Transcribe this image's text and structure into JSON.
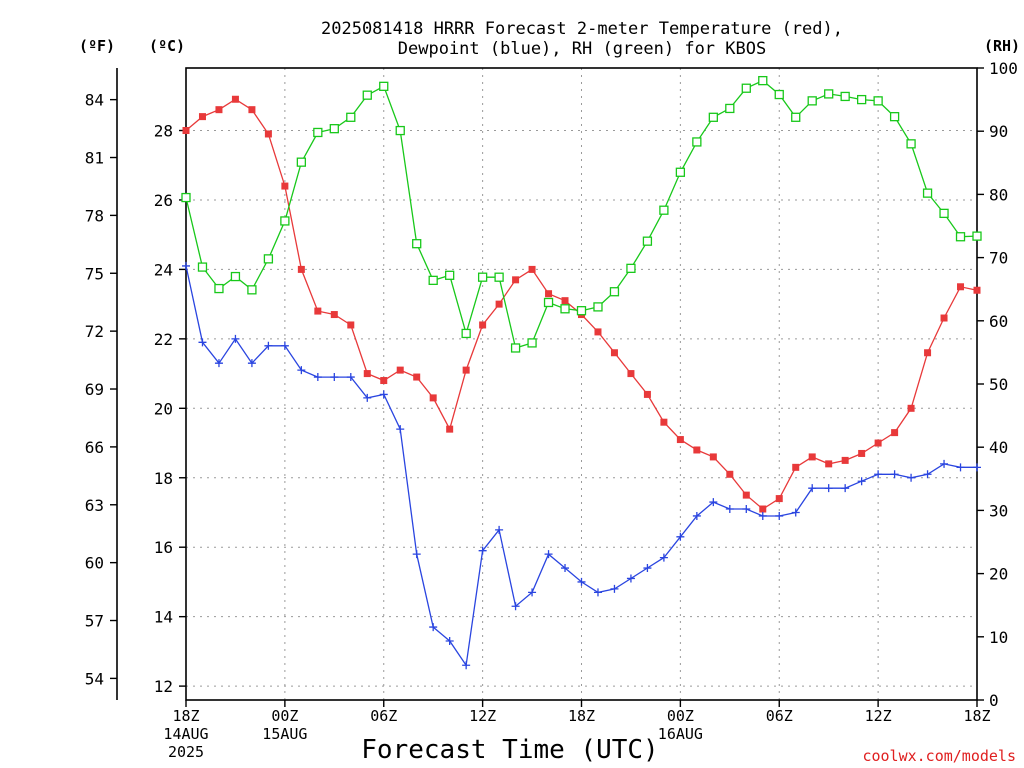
{
  "title_line1": "2025081418 HRRR Forecast 2-meter Temperature (red),",
  "title_line2": "Dewpoint (blue), RH (green) for KBOS",
  "unit_f": "(ºF)",
  "unit_c": "(ºC)",
  "unit_rh": "(RH)",
  "credit": "coolwx.com/models",
  "chart_data": {
    "type": "line",
    "xlabel": "Forecast Time (UTC)",
    "x_hours": [
      0,
      1,
      2,
      3,
      4,
      5,
      6,
      7,
      8,
      9,
      10,
      11,
      12,
      13,
      14,
      15,
      16,
      17,
      18,
      19,
      20,
      21,
      22,
      23,
      24,
      25,
      26,
      27,
      28,
      29,
      30,
      31,
      32,
      33,
      34,
      35,
      36,
      37,
      38,
      39,
      40,
      41,
      42,
      43,
      44,
      45,
      46,
      47,
      48
    ],
    "x_ticks": [
      {
        "h": 0,
        "lines": [
          "18Z",
          "14AUG",
          "2025"
        ]
      },
      {
        "h": 6,
        "lines": [
          "00Z",
          "15AUG"
        ]
      },
      {
        "h": 12,
        "lines": [
          "06Z"
        ]
      },
      {
        "h": 18,
        "lines": [
          "12Z"
        ]
      },
      {
        "h": 24,
        "lines": [
          "18Z"
        ]
      },
      {
        "h": 30,
        "lines": [
          "00Z",
          "16AUG"
        ]
      },
      {
        "h": 36,
        "lines": [
          "06Z"
        ]
      },
      {
        "h": 42,
        "lines": [
          "12Z"
        ]
      },
      {
        "h": 48,
        "lines": [
          "18Z"
        ]
      }
    ],
    "xlim": [
      0,
      48
    ],
    "ylim_c": [
      11.6,
      29.8
    ],
    "ylim_rh": [
      0,
      100
    ],
    "yticks_c": [
      "12",
      "14",
      "16",
      "18",
      "20",
      "22",
      "24",
      "26",
      "28"
    ],
    "yticks_f": [
      "54",
      "57",
      "60",
      "63",
      "66",
      "69",
      "72",
      "75",
      "78",
      "81",
      "84"
    ],
    "yticks_rh": [
      "0",
      "10",
      "20",
      "30",
      "40",
      "50",
      "60",
      "70",
      "80",
      "90",
      "100"
    ],
    "grid": true,
    "series": [
      {
        "name": "Temperature",
        "unit": "°C",
        "color": "#e8393a",
        "marker": "square-filled",
        "axis": "c",
        "values": [
          28.0,
          28.4,
          28.6,
          28.9,
          28.6,
          27.9,
          26.4,
          24.0,
          22.8,
          22.7,
          22.4,
          21.0,
          20.8,
          21.1,
          20.9,
          20.3,
          19.4,
          21.1,
          22.4,
          23.0,
          23.7,
          24.0,
          23.3,
          23.1,
          22.7,
          22.2,
          21.6,
          21.0,
          20.4,
          19.6,
          19.1,
          18.8,
          18.6,
          18.1,
          17.5,
          17.1,
          17.4,
          18.3,
          18.6,
          18.4,
          18.5,
          18.7,
          19.0,
          19.3,
          20.0,
          21.6,
          22.6,
          23.5,
          23.4
        ]
      },
      {
        "name": "Dewpoint",
        "unit": "°C",
        "color": "#2a45e0",
        "marker": "plus",
        "axis": "c",
        "values": [
          24.1,
          21.9,
          21.3,
          22.0,
          21.3,
          21.8,
          21.8,
          21.1,
          20.9,
          20.9,
          20.9,
          20.3,
          20.4,
          19.4,
          15.8,
          13.7,
          13.3,
          12.6,
          15.9,
          16.5,
          14.3,
          14.7,
          15.8,
          15.4,
          15.0,
          14.7,
          14.8,
          15.1,
          15.4,
          15.7,
          16.3,
          16.9,
          17.3,
          17.1,
          17.1,
          16.9,
          16.9,
          17.0,
          17.7,
          17.7,
          17.7,
          17.9,
          18.1,
          18.1,
          18.0,
          18.1,
          18.4,
          18.3,
          18.3
        ]
      },
      {
        "name": "RH",
        "unit": "%",
        "color": "#18c81a",
        "marker": "square-open",
        "axis": "rh",
        "values": [
          79.5,
          68.5,
          65.1,
          67.0,
          64.9,
          69.8,
          75.8,
          85.1,
          89.8,
          90.4,
          92.2,
          95.7,
          97.1,
          90.1,
          72.2,
          66.4,
          67.2,
          58.0,
          66.9,
          66.9,
          55.7,
          56.5,
          62.9,
          61.9,
          61.6,
          62.2,
          64.6,
          68.3,
          72.6,
          77.5,
          83.5,
          88.3,
          92.2,
          93.6,
          96.8,
          98.0,
          95.8,
          92.2,
          94.8,
          95.9,
          95.5,
          95.0,
          94.8,
          92.3,
          88.0,
          80.2,
          77.0,
          73.3,
          73.4
        ]
      }
    ]
  }
}
